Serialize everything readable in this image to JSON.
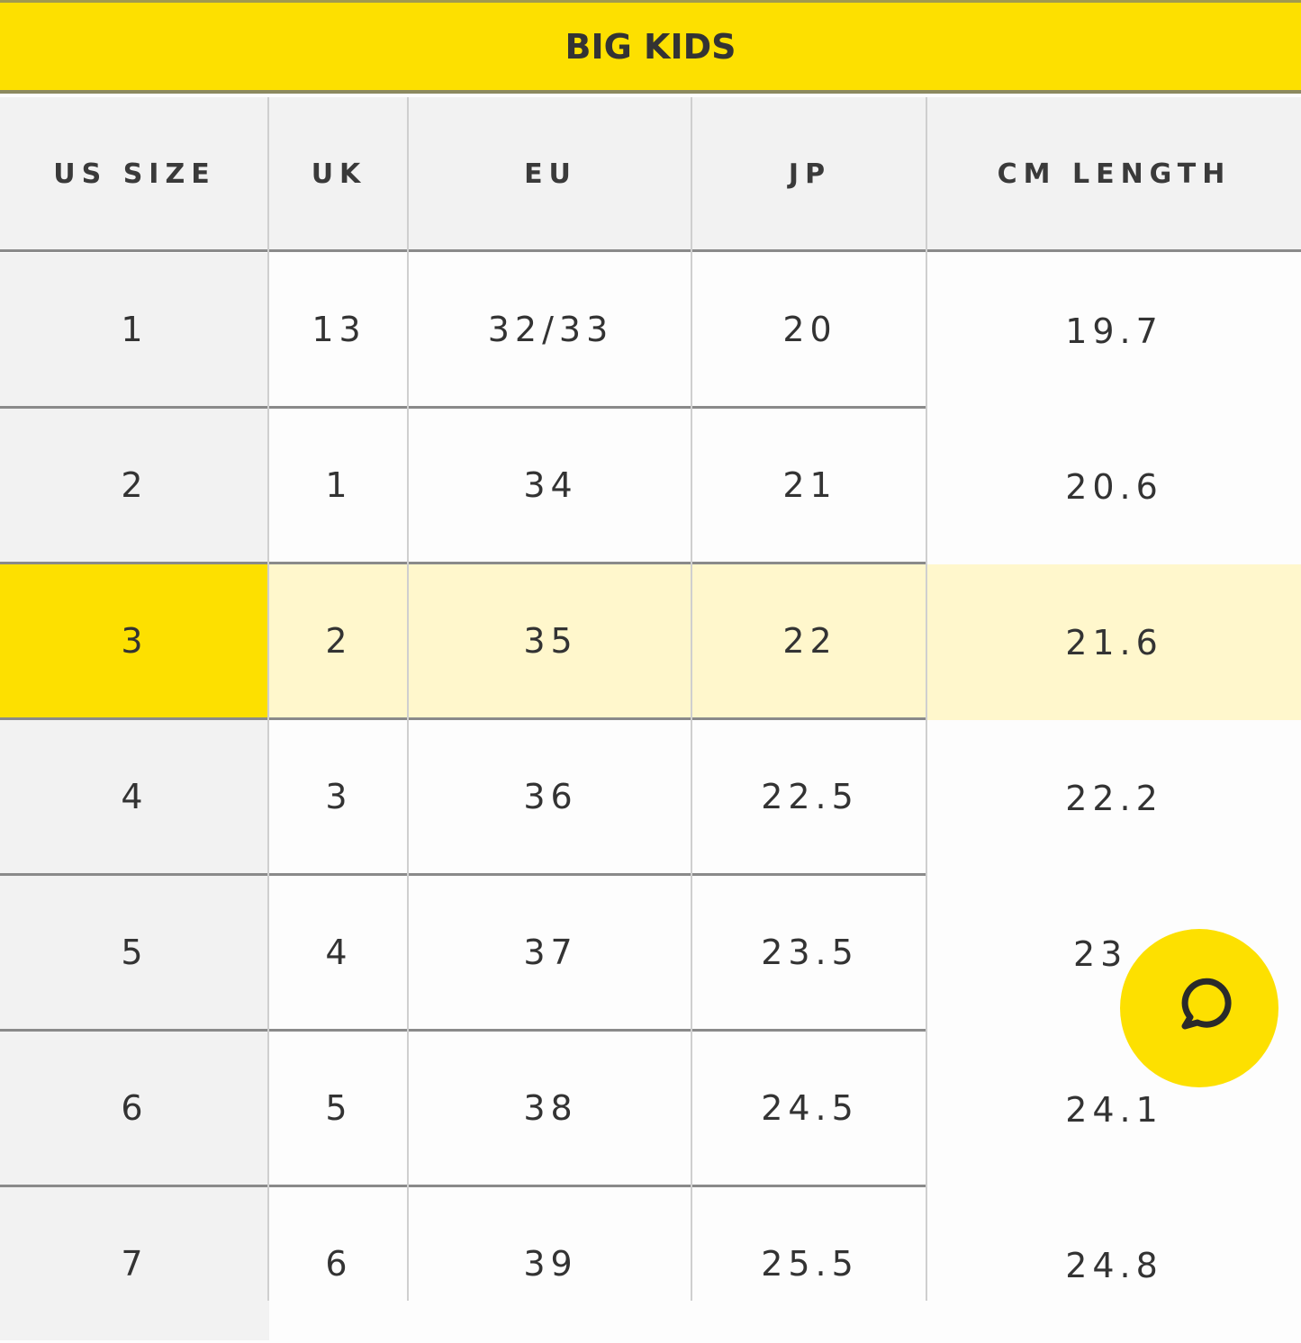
{
  "title": "BIG KIDS",
  "columns": [
    "US SIZE",
    "UK",
    "EU",
    "JP",
    "CM LENGTH"
  ],
  "rows": [
    [
      "1",
      "13",
      "32/33",
      "20",
      "19.7"
    ],
    [
      "2",
      "1",
      "34",
      "21",
      "20.6"
    ],
    [
      "3",
      "2",
      "35",
      "22",
      "21.6"
    ],
    [
      "4",
      "3",
      "36",
      "22.5",
      "22.2"
    ],
    [
      "5",
      "4",
      "37",
      "23.5",
      "23"
    ],
    [
      "6",
      "5",
      "38",
      "24.5",
      "24.1"
    ],
    [
      "7",
      "6",
      "39",
      "25.5",
      "24.8"
    ]
  ],
  "highlighted_row": 2,
  "colors": {
    "accent": "#fde000",
    "highlight": "#fff7cc",
    "header_bg": "#f2f2f2"
  },
  "chat_button": {
    "icon": "chat-bubble-icon"
  }
}
